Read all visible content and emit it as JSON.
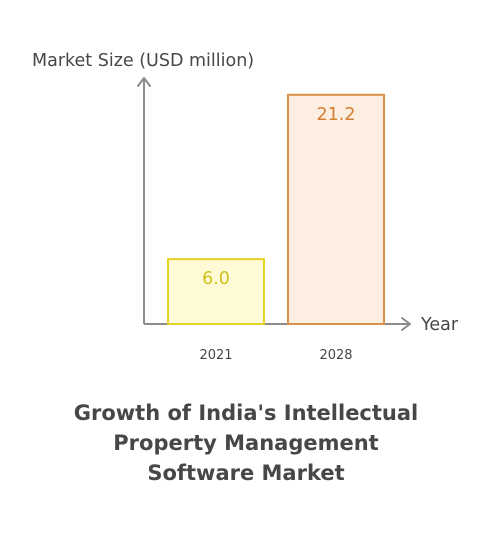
{
  "chart_data": {
    "type": "bar",
    "categories": [
      "2021",
      "2028"
    ],
    "values": [
      6.0,
      21.2
    ],
    "value_labels": [
      "6.0",
      "21.2"
    ],
    "ylabel": "Market Size (USD million)",
    "xlabel": "Year",
    "title": "Growth of India's Intellectual Property Management Software Market",
    "ylim": [
      0,
      22.2
    ],
    "grid": false,
    "legend": "none",
    "bar_fills": [
      "#fffbd6",
      "#fdeee2"
    ],
    "bar_strokes": [
      "#e6d128",
      "#d9904a"
    ],
    "label_colors": [
      "#d1bf1b",
      "#d27f30"
    ],
    "axis_color": "#8c8c8c"
  }
}
